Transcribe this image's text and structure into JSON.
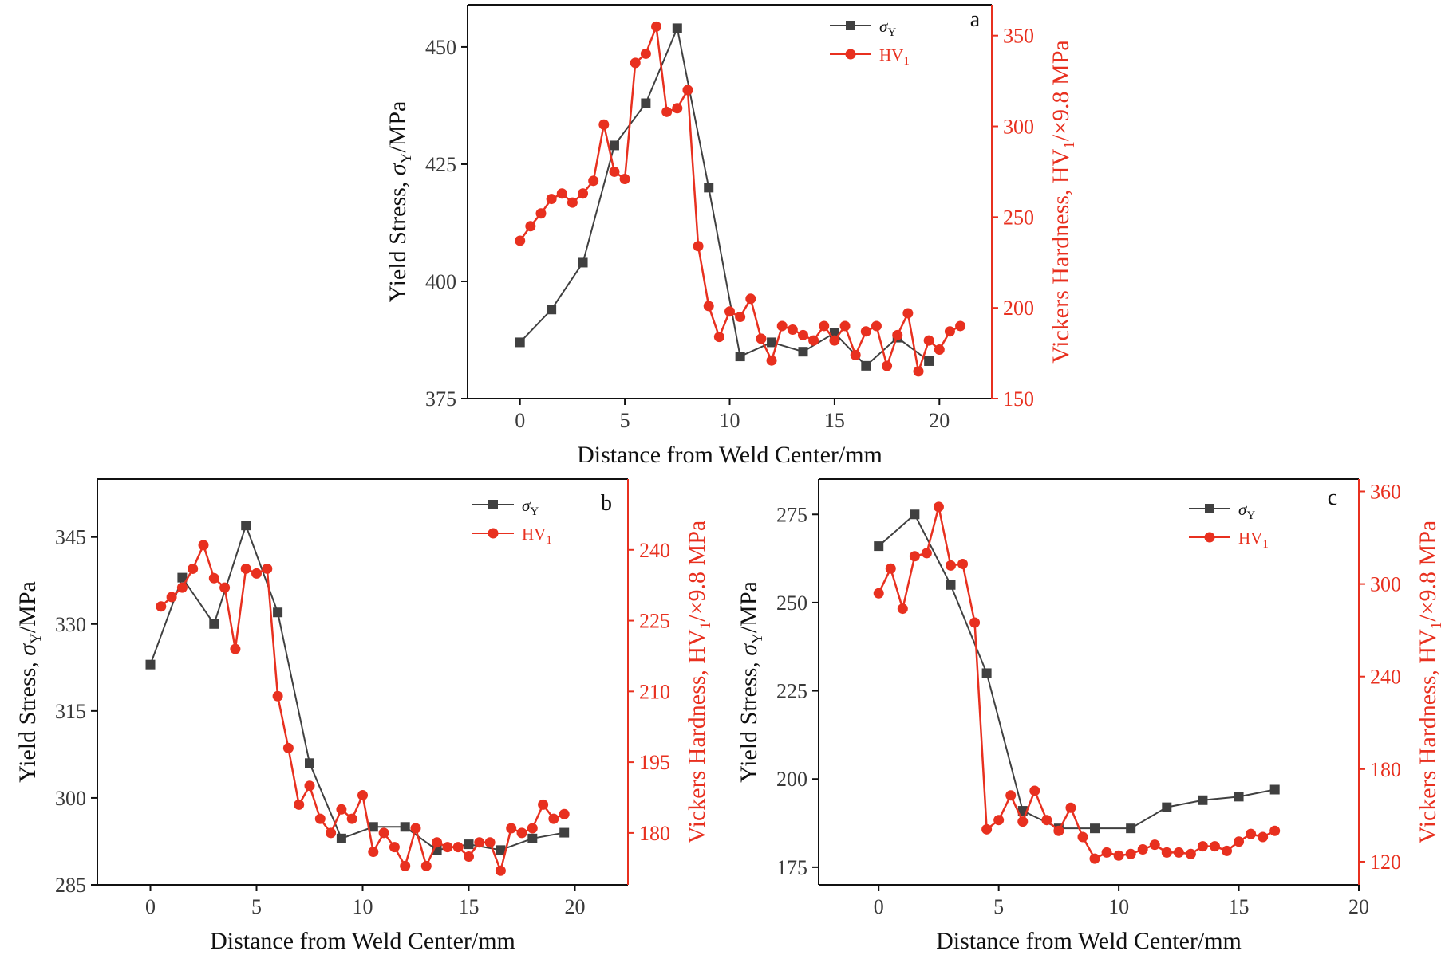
{
  "colors": {
    "sigma": "#404040",
    "hv": "#e8301f",
    "frame": "#111111"
  },
  "legend": {
    "sigma_main": "σ",
    "sigma_sub": "Y",
    "hv_main": "HV",
    "hv_sub": "1"
  },
  "chart_data": [
    {
      "panel": "a",
      "type": "line",
      "xlabel": "Distance from Weld Center/mm",
      "ylabel_left": {
        "main": "Yield Stress, ",
        "sym": "σ",
        "sub": "Y",
        "rest": "/MPa"
      },
      "ylabel_right": {
        "main": "Vickers Hardness, HV",
        "sub": "1",
        "rest": "/×9.8 MPa"
      },
      "xlim": [
        -2.5,
        22.5
      ],
      "xticks": [
        0,
        5,
        10,
        15,
        20
      ],
      "ylim_left": [
        375,
        459
      ],
      "yticks_left": [
        375,
        400,
        425,
        450
      ],
      "ylim_right": [
        150,
        367
      ],
      "yticks_right": [
        150,
        200,
        250,
        300,
        350
      ],
      "series": [
        {
          "name": "σY",
          "axis": "left",
          "marker": "square",
          "x": [
            0,
            1.5,
            3,
            4.5,
            6,
            7.5,
            9,
            10.5,
            12,
            13.5,
            15,
            16.5,
            18,
            19.5
          ],
          "y": [
            387,
            394,
            404,
            429,
            438,
            454,
            420,
            384,
            387,
            385,
            389,
            382,
            388,
            383
          ]
        },
        {
          "name": "HV1",
          "axis": "right",
          "marker": "circle",
          "x": [
            0,
            0.5,
            1,
            1.5,
            2,
            2.5,
            3,
            3.5,
            4,
            4.5,
            5,
            5.5,
            6,
            6.5,
            7,
            7.5,
            8,
            8.5,
            9,
            9.5,
            10,
            10.5,
            11,
            11.5,
            12,
            12.5,
            13,
            13.5,
            14,
            14.5,
            15,
            15.5,
            16,
            16.5,
            17,
            17.5,
            18,
            18.5,
            19,
            19.5,
            20,
            20.5,
            21
          ],
          "y": [
            237,
            245,
            252,
            260,
            263,
            258,
            263,
            270,
            301,
            275,
            271,
            335,
            340,
            355,
            308,
            310,
            320,
            234,
            201,
            184,
            198,
            195,
            205,
            183,
            171,
            190,
            188,
            185,
            182,
            190,
            182,
            190,
            174,
            187,
            190,
            168,
            185,
            197,
            165,
            182,
            177,
            187,
            190
          ]
        }
      ]
    },
    {
      "panel": "b",
      "type": "line",
      "xlabel": "Distance from Weld Center/mm",
      "ylabel_left": {
        "main": "Yield Stress, ",
        "sym": "σ",
        "sub": "Y",
        "rest": "/MPa"
      },
      "ylabel_right": {
        "main": "Vickers Hardness, HV",
        "sub": "1",
        "rest": "/×9.8 MPa"
      },
      "xlim": [
        -2.5,
        22.5
      ],
      "xticks": [
        0,
        5,
        10,
        15,
        20
      ],
      "ylim_left": [
        285,
        355
      ],
      "yticks_left": [
        285,
        300,
        315,
        330,
        345
      ],
      "ylim_right": [
        169,
        255
      ],
      "yticks_right": [
        180,
        195,
        210,
        225,
        240
      ],
      "series": [
        {
          "name": "σY",
          "axis": "left",
          "marker": "square",
          "x": [
            0,
            1.5,
            3,
            4.5,
            6,
            7.5,
            9,
            10.5,
            12,
            13.5,
            15,
            16.5,
            18,
            19.5
          ],
          "y": [
            323,
            338,
            330,
            347,
            332,
            306,
            293,
            295,
            295,
            291,
            292,
            291,
            293,
            294
          ]
        },
        {
          "name": "HV1",
          "axis": "right",
          "marker": "circle",
          "x": [
            0.5,
            1,
            1.5,
            2,
            2.5,
            3,
            3.5,
            4,
            4.5,
            5,
            5.5,
            6,
            6.5,
            7,
            7.5,
            8,
            8.5,
            9,
            9.5,
            10,
            10.5,
            11,
            11.5,
            12,
            12.5,
            13,
            13.5,
            14,
            14.5,
            15,
            15.5,
            16,
            16.5,
            17,
            17.5,
            18,
            18.5,
            19,
            19.5
          ],
          "y": [
            228,
            230,
            232,
            236,
            241,
            234,
            232,
            219,
            236,
            235,
            236,
            209,
            198,
            186,
            190,
            183,
            180,
            185,
            183,
            188,
            176,
            180,
            177,
            173,
            181,
            173,
            178,
            177,
            177,
            175,
            178,
            178,
            172,
            181,
            180,
            181,
            186,
            183,
            184
          ]
        }
      ]
    },
    {
      "panel": "c",
      "type": "line",
      "xlabel": "Distance from Weld Center/mm",
      "ylabel_left": {
        "main": "Yield Stress, ",
        "sym": "σ",
        "sub": "Y",
        "rest": "/MPa"
      },
      "ylabel_right": {
        "main": "Vickers Hardness, HV",
        "sub": "1",
        "rest": "/×9.8 MPa"
      },
      "xlim": [
        -2.5,
        20
      ],
      "xticks": [
        0,
        5,
        10,
        15,
        20
      ],
      "ylim_left": [
        170,
        285
      ],
      "yticks_left": [
        175,
        200,
        225,
        250,
        275
      ],
      "ylim_right": [
        105,
        368
      ],
      "yticks_right": [
        120,
        180,
        240,
        300,
        360
      ],
      "series": [
        {
          "name": "σY",
          "axis": "left",
          "marker": "square",
          "x": [
            0,
            1.5,
            3,
            4.5,
            6,
            7.5,
            9,
            10.5,
            12,
            13.5,
            15,
            16.5
          ],
          "y": [
            266,
            275,
            255,
            230,
            191,
            186,
            186,
            186,
            192,
            194,
            195,
            197
          ]
        },
        {
          "name": "HV1",
          "axis": "right",
          "marker": "circle",
          "x": [
            0,
            0.5,
            1,
            1.5,
            2,
            2.5,
            3,
            3.5,
            4,
            4.5,
            5,
            5.5,
            6,
            6.5,
            7,
            7.5,
            8,
            8.5,
            9,
            9.5,
            10,
            10.5,
            11,
            11.5,
            12,
            12.5,
            13,
            13.5,
            14,
            14.5,
            15,
            15.5,
            16,
            16.5
          ],
          "y": [
            294,
            310,
            284,
            318,
            320,
            350,
            312,
            313,
            275,
            141,
            147,
            163,
            146,
            166,
            147,
            140,
            155,
            136,
            122,
            126,
            124,
            125,
            128,
            131,
            126,
            126,
            125,
            130,
            130,
            127,
            133,
            138,
            136,
            140
          ]
        }
      ]
    }
  ]
}
